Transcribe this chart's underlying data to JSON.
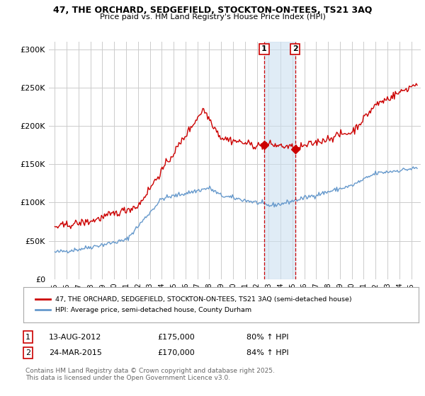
{
  "title_line1": "47, THE ORCHARD, SEDGEFIELD, STOCKTON-ON-TEES, TS21 3AQ",
  "title_line2": "Price paid vs. HM Land Registry's House Price Index (HPI)",
  "legend_line1": "47, THE ORCHARD, SEDGEFIELD, STOCKTON-ON-TEES, TS21 3AQ (semi-detached house)",
  "legend_line2": "HPI: Average price, semi-detached house, County Durham",
  "footnote": "Contains HM Land Registry data © Crown copyright and database right 2025.\nThis data is licensed under the Open Government Licence v3.0.",
  "transaction1_date": "13-AUG-2012",
  "transaction1_price": "£175,000",
  "transaction1_hpi": "80% ↑ HPI",
  "transaction2_date": "24-MAR-2015",
  "transaction2_price": "£170,000",
  "transaction2_hpi": "84% ↑ HPI",
  "line1_color": "#cc0000",
  "line2_color": "#6699cc",
  "ylim": [
    0,
    310000
  ],
  "yticks": [
    0,
    50000,
    100000,
    150000,
    200000,
    250000,
    300000
  ],
  "background_color": "#ffffff",
  "grid_color": "#cccccc",
  "marker1_x": 2012.62,
  "marker1_y": 175000,
  "marker2_x": 2015.23,
  "marker2_y": 170000,
  "shade_x1": 2012.62,
  "shade_x2": 2015.23,
  "xlim_left": 1994.5,
  "xlim_right": 2025.8,
  "seed": 42
}
